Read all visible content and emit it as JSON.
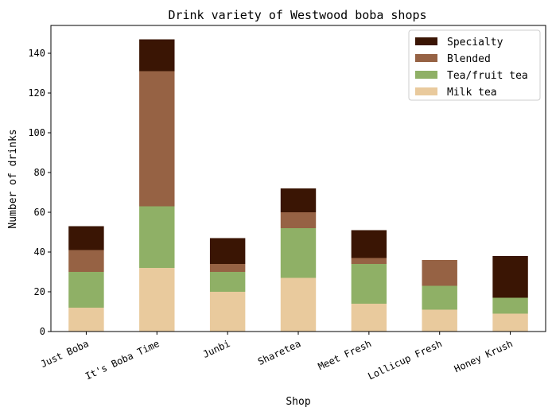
{
  "chart_data": {
    "type": "bar",
    "stacked": true,
    "title": "Drink variety of Westwood boba shops",
    "xlabel": "Shop",
    "ylabel": "Number of drinks",
    "ylim": [
      0,
      154
    ],
    "yticks": [
      0,
      20,
      40,
      60,
      80,
      100,
      120,
      140
    ],
    "grid": false,
    "legend_position": "top-right",
    "categories": [
      "Just Boba",
      "It's Boba Time",
      "Junbi",
      "Sharetea",
      "Meet Fresh",
      "Lollicup Fresh",
      "Honey Krush"
    ],
    "series": [
      {
        "name": "Milk tea",
        "color": "#e9ca9d",
        "values": [
          12,
          32,
          20,
          27,
          14,
          11,
          9
        ]
      },
      {
        "name": "Tea/fruit tea",
        "color": "#8fb066",
        "values": [
          18,
          31,
          10,
          25,
          20,
          12,
          8
        ]
      },
      {
        "name": "Blended",
        "color": "#966244",
        "values": [
          11,
          68,
          4,
          8,
          3,
          13,
          0
        ]
      },
      {
        "name": "Specialty",
        "color": "#3a1504",
        "values": [
          12,
          16,
          13,
          12,
          14,
          0,
          21
        ]
      }
    ],
    "legend_order": [
      "Specialty",
      "Blended",
      "Tea/fruit tea",
      "Milk tea"
    ]
  }
}
